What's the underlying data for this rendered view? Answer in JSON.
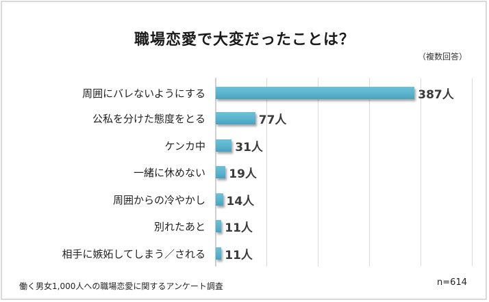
{
  "chart_data": {
    "type": "bar",
    "orientation": "horizontal",
    "title": "職場恋愛で大変だったことは？",
    "subtitle": "（複数回答）",
    "categories": [
      "周囲にバレないようにする",
      "公私を分けた態度をとる",
      "ケンカ中",
      "一緒に休めない",
      "周囲からの冷やかし",
      "別れたあと",
      "相手に嫉妬してしまう／される"
    ],
    "values": [
      387,
      77,
      31,
      19,
      14,
      11,
      11
    ],
    "labels": [
      "387人",
      "77人",
      "31人",
      "19人",
      "14人",
      "11人",
      "11人"
    ],
    "unit": "人",
    "xlim": [
      0,
      500
    ],
    "grid": true,
    "grid_step": 100,
    "color": "#58b2cc",
    "footer": "働く男女1,000人への職場恋愛に関するアンケート調査",
    "n_label": "n=614"
  }
}
